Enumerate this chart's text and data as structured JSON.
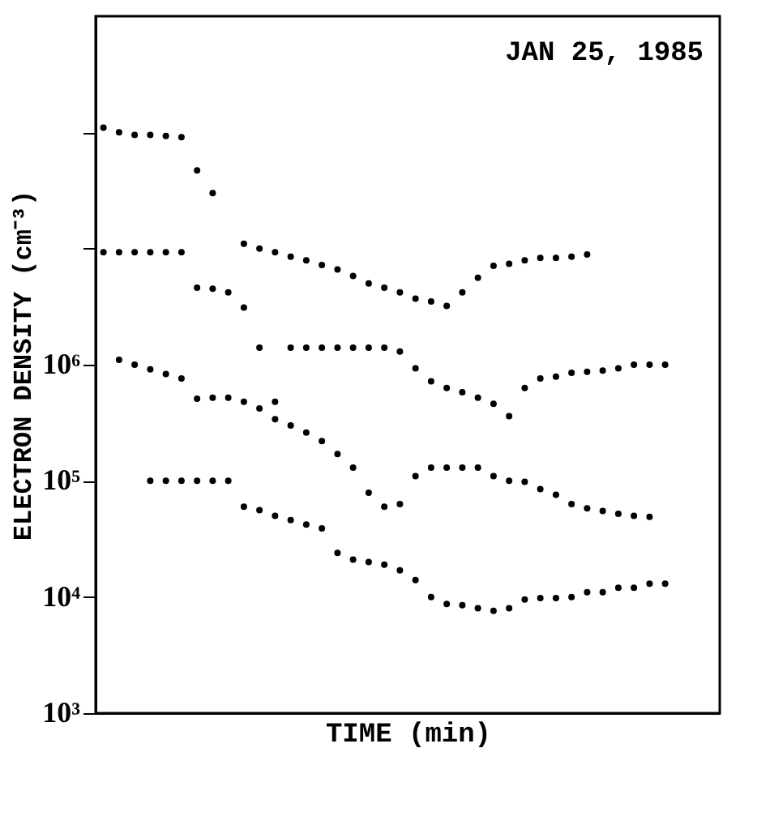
{
  "chart_data": {
    "type": "scatter",
    "xlabel": "TIME (min)",
    "ylabel": "ELECTRON DENSITY (cm⁻³)",
    "annotations": [
      "JAN 25, 1985"
    ],
    "categories": [
      null,
      null,
      null,
      null,
      null,
      null,
      null,
      null,
      null,
      null,
      null,
      null,
      null,
      null,
      null,
      null,
      null,
      null,
      null,
      null,
      null,
      null,
      null,
      null,
      null,
      null,
      null,
      null,
      null,
      null,
      null,
      null,
      null,
      null,
      null,
      null,
      null,
      null,
      null,
      null
    ],
    "series": [
      {
        "color": "#000000",
        "values": [
          110000000.0,
          100000000.0,
          95000000.0,
          95000000.0,
          93000000.0,
          91000000.0,
          47000000.0,
          30000000.0,
          null,
          11000000.0,
          10000000.0,
          9300000.0,
          8500000.0,
          7900000.0,
          7200000.0,
          6600000.0,
          5800000.0,
          5000000.0,
          4600000.0,
          4200000.0,
          3700000.0,
          3500000.0,
          3200000.0,
          4200000.0,
          5600000.0,
          7100000.0,
          7400000.0,
          7900000.0,
          8300000.0,
          8300000.0,
          8500000.0,
          8900000.0,
          null,
          null,
          null,
          null,
          null,
          null,
          null,
          null
        ]
      },
      {
        "color": "#000000",
        "values": [
          9300000.0,
          9300000.0,
          9300000.0,
          9300000.0,
          9300000.0,
          9300000.0,
          4600000.0,
          4500000.0,
          4200000.0,
          3100000.0,
          1400000.0,
          480000.0,
          1400000.0,
          1400000.0,
          1400000.0,
          1400000.0,
          1400000.0,
          1400000.0,
          1400000.0,
          1300000.0,
          930000.0,
          720000.0,
          630000.0,
          580000.0,
          520000.0,
          460000.0,
          360000.0,
          630000.0,
          760000.0,
          790000.0,
          850000.0,
          870000.0,
          890000.0,
          930000.0,
          1000000.0,
          1000000.0,
          1000000.0,
          null,
          null,
          null
        ]
      },
      {
        "color": "#000000",
        "values": [
          null,
          1100000.0,
          1000000.0,
          910000.0,
          830000.0,
          760000.0,
          510000.0,
          520000.0,
          520000.0,
          480000.0,
          420000.0,
          340000.0,
          300000.0,
          260000.0,
          220000.0,
          170000.0,
          130000.0,
          79000.0,
          60000.0,
          63000.0,
          110000.0,
          130000.0,
          130000.0,
          130000.0,
          130000.0,
          110000.0,
          100000.0,
          98000.0,
          85000.0,
          76000.0,
          63000.0,
          58000.0,
          55000.0,
          52000.0,
          50000.0,
          49000.0,
          null,
          null,
          null,
          null
        ]
      },
      {
        "color": "#000000",
        "values": [
          null,
          null,
          null,
          100000.0,
          100000.0,
          100000.0,
          100000.0,
          100000.0,
          100000.0,
          60000.0,
          56000.0,
          50000.0,
          46000.0,
          42000.0,
          39000.0,
          24000.0,
          21000.0,
          20000.0,
          19000.0,
          17000.0,
          14000.0,
          10000.0,
          8700.0,
          8500.0,
          8000.0,
          7600.0,
          8000.0,
          9500.0,
          9800.0,
          9800.0,
          10000.0,
          11000.0,
          11000.0,
          12000.0,
          12000.0,
          13000.0,
          13000.0,
          null,
          null,
          null
        ]
      }
    ],
    "log": true,
    "ylim": [
      1000,
      1000000000
    ],
    "yticks": [
      {
        "value": 1000,
        "label": "10³"
      },
      {
        "value": 10000,
        "label": "10⁴"
      },
      {
        "value": 100000,
        "label": "10⁵"
      },
      {
        "value": 1000000,
        "label": "10⁶"
      },
      {
        "value": 10000000,
        "label": null
      },
      {
        "value": 100000000,
        "label": null
      }
    ],
    "tick_labels": "y",
    "marker": "circle",
    "grid": false,
    "legend": false
  }
}
